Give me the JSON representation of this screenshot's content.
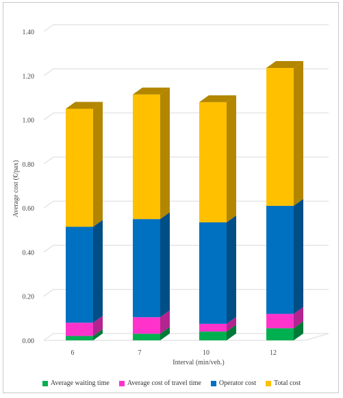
{
  "chart_data": {
    "type": "bar",
    "stacked": true,
    "three_d": true,
    "categories": [
      "6",
      "7",
      "10",
      "12"
    ],
    "series": [
      {
        "name": "Average waiting time",
        "values": [
          0.02,
          0.03,
          0.04,
          0.055
        ],
        "color": "#00b050",
        "side_color": "#007a38"
      },
      {
        "name": "Average cost of travel time",
        "values": [
          0.06,
          0.075,
          0.035,
          0.065
        ],
        "color": "#ff33cc",
        "side_color": "#b3248f"
      },
      {
        "name": "Operator cost",
        "values": [
          0.435,
          0.445,
          0.46,
          0.49
        ],
        "color": "#0070c0",
        "side_color": "#004e86"
      },
      {
        "name": "Total cost",
        "values": [
          0.535,
          0.565,
          0.545,
          0.625
        ],
        "color": "#ffc000",
        "side_color": "#b38600"
      }
    ],
    "ylim": [
      0,
      1.4
    ],
    "ytick_values": [
      0,
      0.2,
      0.4,
      0.6,
      0.8,
      1.0,
      1.2,
      1.4
    ],
    "ytick_labels": [
      "0.00",
      "0.20",
      "0.40",
      "0.60",
      "0.80",
      "1.00",
      "1.20",
      "1.40"
    ],
    "xlabel": "Interval (min/veh.)",
    "ylabel": "Average cost (€/pax)",
    "grid": true,
    "legend_position": "bottom"
  }
}
